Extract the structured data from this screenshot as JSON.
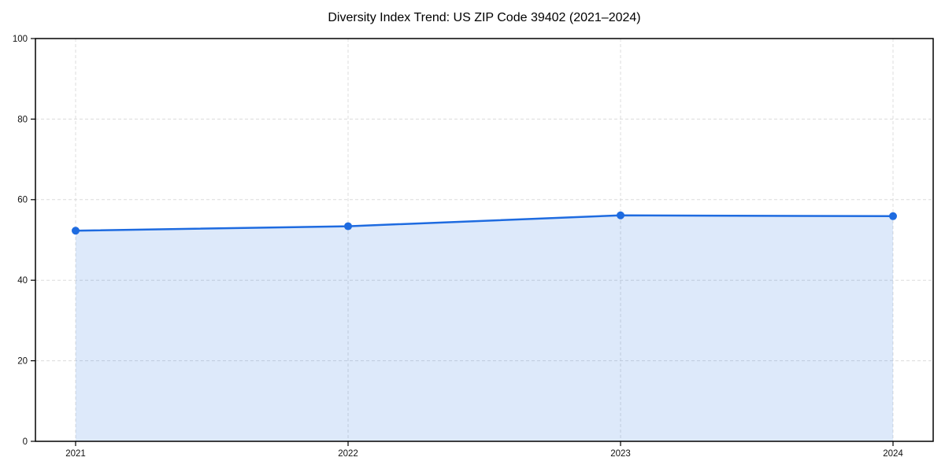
{
  "chart_data": {
    "type": "line",
    "title": "Diversity Index Trend: US ZIP Code 39402 (2021–2024)",
    "categories": [
      "2021",
      "2022",
      "2023",
      "2024"
    ],
    "series": [
      {
        "name": "Diversity Index",
        "values": [
          52.3,
          53.4,
          56.1,
          55.9
        ]
      }
    ],
    "xlabel": "",
    "ylabel": "",
    "ylim": [
      0,
      100
    ],
    "yticks": [
      0,
      20,
      40,
      60,
      80,
      100
    ],
    "grid": "dashed, horizontal and vertical",
    "legend_position": "none",
    "area_fill_under_line": true,
    "colors": {
      "line": "#1e6be0",
      "marker": "#1e6be0",
      "area_fill": "#1e6be0",
      "area_fill_opacity": "0.15",
      "gridline": "#dcdcdc",
      "axis_frame": "#000000",
      "background": "#ffffff",
      "tick_label": "#111111"
    }
  }
}
